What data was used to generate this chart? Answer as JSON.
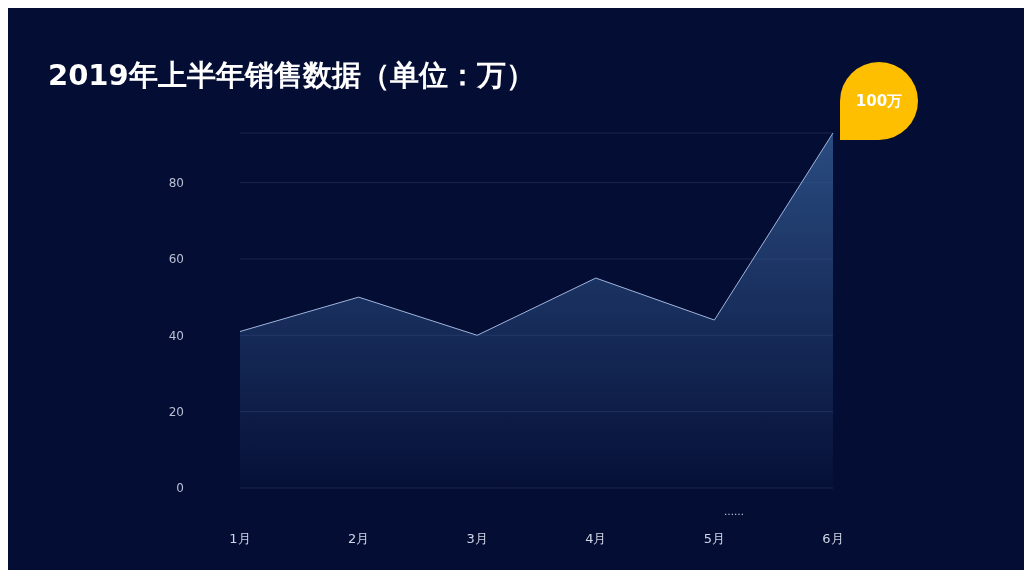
{
  "chart_data": {
    "type": "area",
    "title": "2019年上半年销售数据（单位：万）",
    "categories": [
      "1月",
      "2月",
      "3月",
      "4月",
      "5月",
      "6月"
    ],
    "series": [
      {
        "color": "#2c4f85",
        "values": [
          41,
          50,
          40,
          55,
          44,
          93
        ]
      }
    ],
    "ylim": [
      0,
      93
    ],
    "yticks": [
      0,
      20,
      40,
      60,
      80
    ],
    "grid": "y",
    "annotations": [
      "100万",
      "……"
    ]
  }
}
